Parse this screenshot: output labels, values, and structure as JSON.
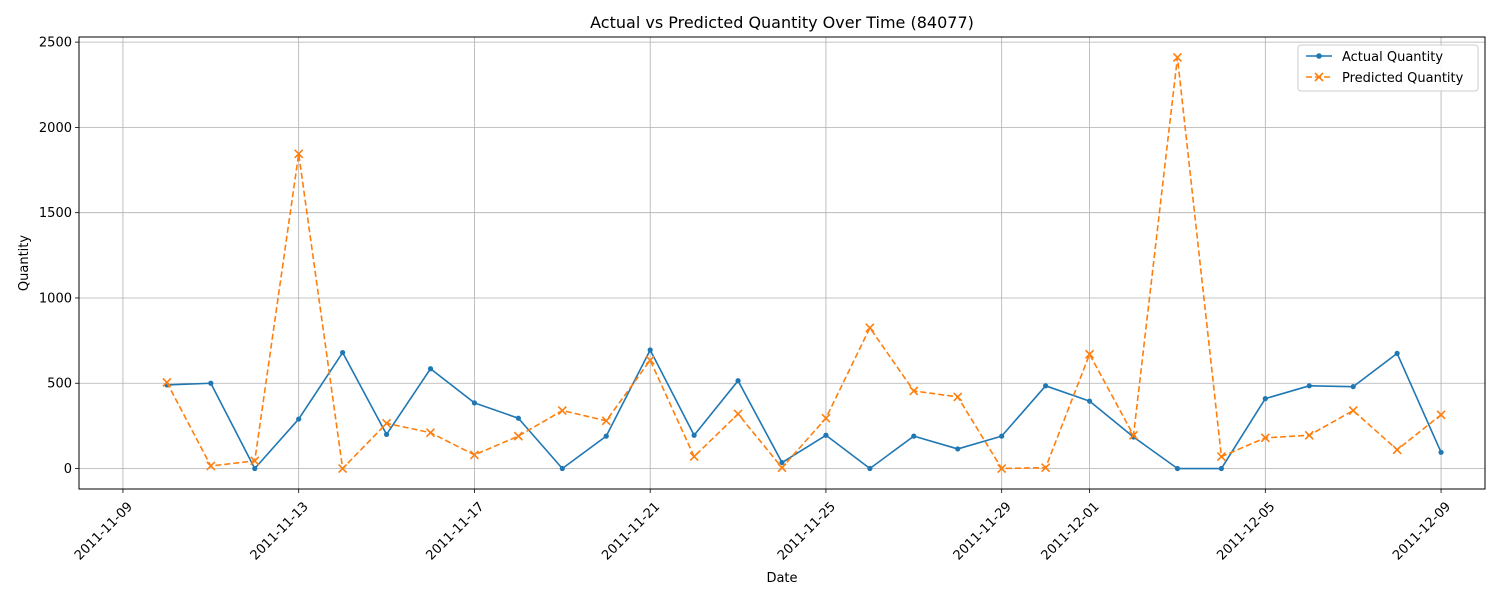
{
  "chart_data": {
    "type": "line",
    "title": "Actual vs Predicted Quantity Over Time (84077)",
    "xlabel": "Date",
    "ylabel": "Quantity",
    "grid": true,
    "legend_position": "top-right",
    "xlim": [
      "2011-11-08",
      "2011-12-10"
    ],
    "ylim": [
      -120,
      2530
    ],
    "x_ticks": [
      "2011-11-09",
      "2011-11-13",
      "2011-11-17",
      "2011-11-21",
      "2011-11-25",
      "2011-11-29",
      "2011-12-01",
      "2011-12-05",
      "2011-12-09"
    ],
    "y_ticks": [
      0,
      500,
      1000,
      1500,
      2000,
      2500
    ],
    "x": [
      "2011-11-10",
      "2011-11-11",
      "2011-11-12",
      "2011-11-13",
      "2011-11-14",
      "2011-11-15",
      "2011-11-16",
      "2011-11-17",
      "2011-11-18",
      "2011-11-19",
      "2011-11-20",
      "2011-11-21",
      "2011-11-22",
      "2011-11-23",
      "2011-11-24",
      "2011-11-25",
      "2011-11-26",
      "2011-11-27",
      "2011-11-28",
      "2011-11-29",
      "2011-11-30",
      "2011-12-01",
      "2011-12-02",
      "2011-12-03",
      "2011-12-04",
      "2011-12-05",
      "2011-12-06",
      "2011-12-07",
      "2011-12-08",
      "2011-12-09"
    ],
    "series": [
      {
        "name": "Actual Quantity",
        "color": "#1f77b4",
        "marker": "dot",
        "linestyle": "solid",
        "values": [
          490,
          500,
          0,
          290,
          680,
          200,
          585,
          385,
          295,
          0,
          190,
          695,
          195,
          515,
          35,
          195,
          0,
          190,
          115,
          190,
          485,
          395,
          185,
          0,
          0,
          410,
          485,
          480,
          675,
          95
        ]
      },
      {
        "name": "Predicted Quantity",
        "color": "#ff7f0e",
        "marker": "x",
        "linestyle": "dashed",
        "values": [
          505,
          15,
          45,
          1845,
          0,
          265,
          210,
          80,
          190,
          340,
          280,
          635,
          70,
          320,
          5,
          295,
          825,
          455,
          420,
          0,
          5,
          670,
          195,
          2410,
          70,
          180,
          195,
          340,
          110,
          315
        ]
      }
    ]
  }
}
